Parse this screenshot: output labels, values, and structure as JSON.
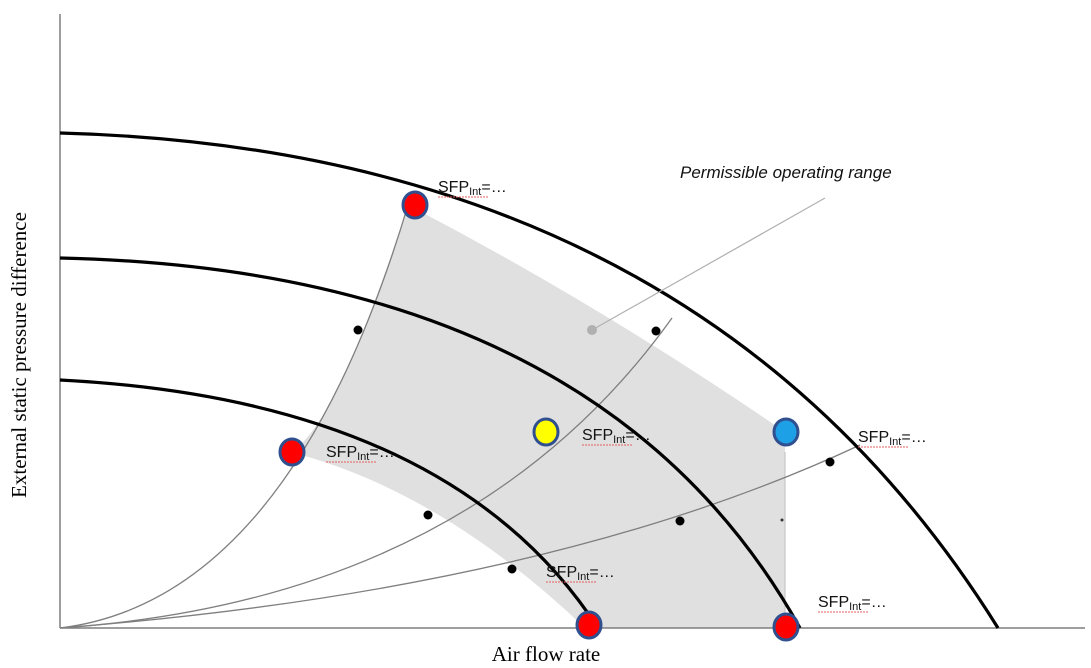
{
  "diagram": {
    "x_axis_title": "Air flow rate",
    "y_axis_title": "External static pressure difference",
    "region_label": "Permissible operating range",
    "sfp_labels": [
      {
        "id": "sfp-top",
        "base": "SFP",
        "sub": "Int",
        "suffix": "=…"
      },
      {
        "id": "sfp-left",
        "base": "SFP",
        "sub": "Int",
        "suffix": "=…"
      },
      {
        "id": "sfp-center",
        "base": "SFP",
        "sub": "Int",
        "suffix": "=…"
      },
      {
        "id": "sfp-right",
        "base": "SFP",
        "sub": "Int",
        "suffix": "=…"
      },
      {
        "id": "sfp-lower",
        "base": "SFP",
        "sub": "Int",
        "suffix": "=…"
      },
      {
        "id": "sfp-bottom-right",
        "base": "SFP",
        "sub": "Int",
        "suffix": "=…"
      }
    ],
    "colors": {
      "fan_curve": "#000000",
      "system_curve": "#7f7f7f",
      "region_fill": "#e0e0e0",
      "marker_red": "#ff0000",
      "marker_yellow": "#ffff00",
      "marker_blue": "#1ea0e6",
      "marker_outline": "#2f4f8f",
      "underline": "#e06060"
    }
  }
}
